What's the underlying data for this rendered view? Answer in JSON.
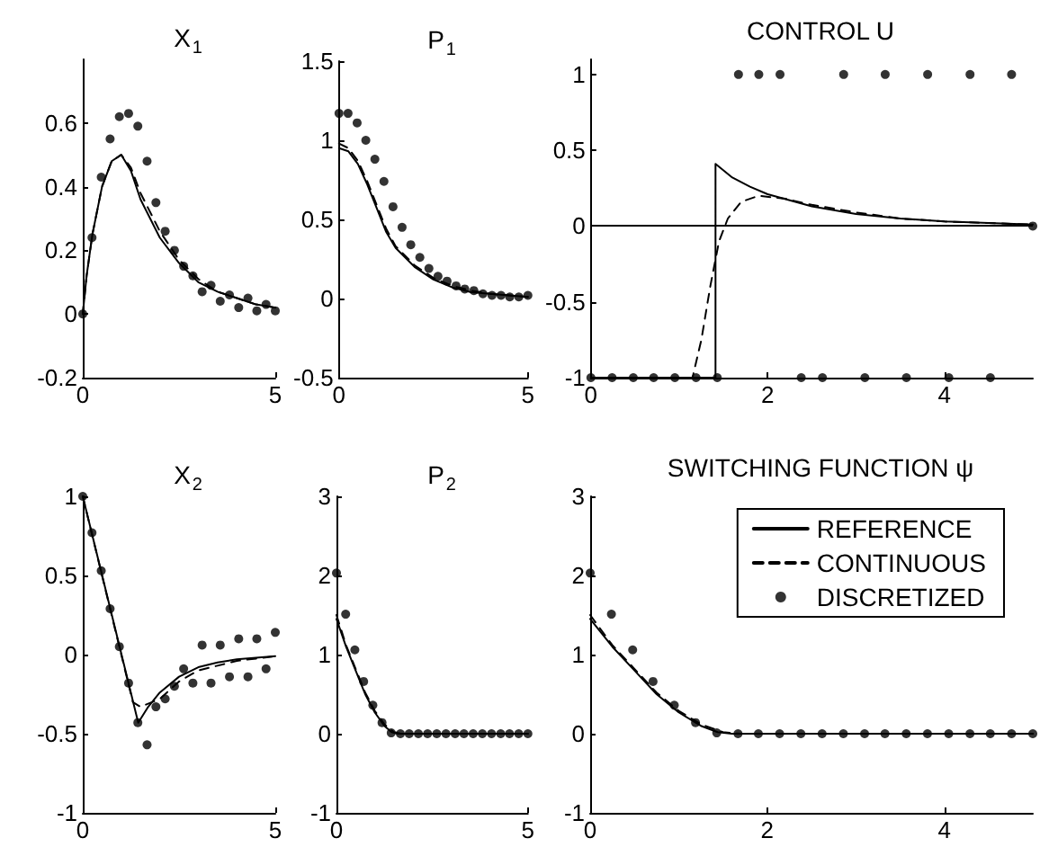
{
  "chart_data": [
    {
      "type": "line",
      "title": "X$_{1}$",
      "xlim": [
        0,
        5
      ],
      "xticks": [
        0,
        5
      ],
      "ylim": [
        -0.2,
        0.8
      ],
      "yticks": [
        -0.2,
        0,
        0.2,
        0.4,
        0.6
      ],
      "series": [
        {
          "type": "line",
          "color": "#000000",
          "line_style": "solid",
          "x": [
            0,
            0.1,
            0.25,
            0.5,
            0.75,
            1.0,
            1.25,
            1.5,
            2,
            2.5,
            3,
            3.5,
            4,
            4.5,
            5
          ],
          "values": [
            0,
            0.12,
            0.25,
            0.4,
            0.48,
            0.5,
            0.45,
            0.36,
            0.24,
            0.16,
            0.1,
            0.07,
            0.05,
            0.03,
            0.02
          ]
        },
        {
          "type": "line",
          "color": "#000000",
          "line_style": "dashed",
          "x": [
            0,
            0.1,
            0.25,
            0.5,
            0.75,
            1.0,
            1.25,
            1.5,
            2,
            2.5,
            3,
            3.5,
            4,
            4.5,
            5
          ],
          "values": [
            0,
            0.12,
            0.25,
            0.4,
            0.48,
            0.5,
            0.46,
            0.38,
            0.26,
            0.17,
            0.11,
            0.07,
            0.05,
            0.03,
            0.02
          ]
        },
        {
          "type": "scatter",
          "color": "#000000",
          "marker": "circle",
          "x": [
            0,
            0.24,
            0.48,
            0.71,
            0.95,
            1.19,
            1.43,
            1.67,
            1.9,
            2.14,
            2.38,
            2.62,
            2.86,
            3.1,
            3.33,
            3.57,
            3.81,
            4.05,
            4.29,
            4.52,
            4.76,
            5
          ],
          "values": [
            0,
            0.24,
            0.43,
            0.55,
            0.62,
            0.63,
            0.59,
            0.48,
            0.35,
            0.26,
            0.2,
            0.15,
            0.12,
            0.07,
            0.09,
            0.04,
            0.06,
            0.02,
            0.05,
            0.01,
            0.03,
            0.01
          ]
        }
      ]
    },
    {
      "type": "line",
      "title": "P$_{1}$",
      "xlim": [
        0,
        5
      ],
      "xticks": [
        0,
        5
      ],
      "ylim": [
        -0.5,
        1.5
      ],
      "yticks": [
        -0.5,
        0,
        0.5,
        1,
        1.5
      ],
      "series": [
        {
          "type": "line",
          "color": "#000000",
          "line_style": "solid",
          "x": [
            0,
            0.25,
            0.5,
            0.75,
            1,
            1.25,
            1.5,
            2,
            2.5,
            3,
            3.5,
            4,
            4.5,
            5
          ],
          "values": [
            0.95,
            0.93,
            0.85,
            0.72,
            0.57,
            0.42,
            0.32,
            0.2,
            0.12,
            0.07,
            0.04,
            0.03,
            0.02,
            0.01
          ]
        },
        {
          "type": "line",
          "color": "#000000",
          "line_style": "dashed",
          "x": [
            0,
            0.25,
            0.5,
            0.75,
            1,
            1.25,
            1.5,
            2,
            2.5,
            3,
            3.5,
            4,
            4.5,
            5
          ],
          "values": [
            0.98,
            0.95,
            0.87,
            0.74,
            0.59,
            0.44,
            0.33,
            0.21,
            0.13,
            0.08,
            0.05,
            0.03,
            0.02,
            0.01
          ]
        },
        {
          "type": "scatter",
          "color": "#000000",
          "marker": "circle",
          "x": [
            0,
            0.24,
            0.48,
            0.71,
            0.95,
            1.19,
            1.43,
            1.67,
            1.9,
            2.14,
            2.38,
            2.62,
            2.86,
            3.1,
            3.33,
            3.57,
            3.81,
            4.05,
            4.29,
            4.52,
            4.76,
            5
          ],
          "values": [
            1.17,
            1.17,
            1.11,
            1.0,
            0.88,
            0.74,
            0.58,
            0.45,
            0.34,
            0.26,
            0.19,
            0.14,
            0.11,
            0.08,
            0.06,
            0.05,
            0.03,
            0.02,
            0.02,
            0.01,
            0.01,
            0.02
          ]
        }
      ]
    },
    {
      "type": "line",
      "title": "CONTROL U",
      "xlim": [
        0,
        5
      ],
      "xticks": [
        0,
        2,
        4
      ],
      "ylim": [
        -1,
        1.1
      ],
      "yticks": [
        -1,
        -0.5,
        0,
        0.5,
        1
      ],
      "ref_lines": [
        {
          "axis": "y",
          "value": 0
        }
      ],
      "series": [
        {
          "type": "line",
          "color": "#000000",
          "line_style": "solid",
          "x": [
            0,
            1.41,
            1.41,
            1.6,
            1.8,
            2,
            2.5,
            3,
            3.5,
            4,
            4.5,
            5
          ],
          "values": [
            -1,
            -1,
            0.41,
            0.32,
            0.26,
            0.21,
            0.13,
            0.08,
            0.05,
            0.03,
            0.02,
            0.01
          ]
        },
        {
          "type": "line",
          "color": "#000000",
          "line_style": "dashed",
          "x": [
            0,
            1.15,
            1.25,
            1.35,
            1.45,
            1.55,
            1.7,
            1.9,
            2.2,
            2.5,
            3,
            3.5,
            4,
            4.5,
            5
          ],
          "values": [
            -1,
            -1,
            -0.75,
            -0.4,
            -0.1,
            0.05,
            0.16,
            0.2,
            0.18,
            0.14,
            0.09,
            0.05,
            0.03,
            0.02,
            0.01
          ]
        },
        {
          "type": "scatter",
          "color": "#000000",
          "marker": "circle",
          "x": [
            0,
            0.24,
            0.48,
            0.71,
            0.95,
            1.19,
            1.43,
            1.67,
            1.9,
            2.14,
            2.38,
            2.62,
            2.86,
            3.1,
            3.33,
            3.57,
            3.81,
            4.05,
            4.29,
            4.52,
            4.76,
            5
          ],
          "values": [
            -1,
            -1,
            -1,
            -1,
            -1,
            -1,
            -1,
            1,
            1,
            1,
            -1,
            -1,
            1,
            -1,
            1,
            -1,
            1,
            -1,
            1,
            -1,
            1,
            0
          ]
        }
      ]
    },
    {
      "type": "line",
      "title": "X$_{2}$",
      "xlim": [
        0,
        5
      ],
      "xticks": [
        0,
        5
      ],
      "ylim": [
        -1,
        1
      ],
      "yticks": [
        -1,
        -0.5,
        0,
        0.5,
        1
      ],
      "series": [
        {
          "type": "line",
          "color": "#000000",
          "line_style": "solid",
          "x": [
            0,
            1.44,
            1.7,
            2,
            2.5,
            3,
            3.5,
            4,
            4.5,
            5
          ],
          "values": [
            1,
            -0.43,
            -0.33,
            -0.24,
            -0.14,
            -0.08,
            -0.05,
            -0.03,
            -0.02,
            -0.01
          ]
        },
        {
          "type": "line",
          "color": "#000000",
          "line_style": "dashed",
          "x": [
            0,
            1.3,
            1.5,
            2,
            2.5,
            3,
            4,
            5
          ],
          "values": [
            1,
            -0.3,
            -0.33,
            -0.28,
            -0.17,
            -0.1,
            -0.04,
            -0.01
          ]
        },
        {
          "type": "scatter",
          "color": "#000000",
          "marker": "circle",
          "x": [
            0,
            0.24,
            0.48,
            0.71,
            0.95,
            1.19,
            1.43,
            1.67,
            1.9,
            2.14,
            2.38,
            2.62,
            2.86,
            3.1,
            3.33,
            3.57,
            3.81,
            4.05,
            4.29,
            4.52,
            4.76,
            5
          ],
          "values": [
            1,
            0.77,
            0.53,
            0.29,
            0.05,
            -0.18,
            -0.43,
            -0.57,
            -0.33,
            -0.28,
            -0.2,
            -0.09,
            -0.18,
            0.06,
            -0.18,
            0.06,
            -0.14,
            0.1,
            -0.14,
            0.1,
            -0.09,
            0.14
          ]
        }
      ]
    },
    {
      "type": "line",
      "title": "P$_{2}$",
      "xlim": [
        0,
        5
      ],
      "xticks": [
        0,
        5
      ],
      "ylim": [
        -1,
        3
      ],
      "yticks": [
        -1,
        0,
        1,
        2,
        3
      ],
      "series": [
        {
          "type": "line",
          "color": "#000000",
          "line_style": "solid",
          "x": [
            0,
            0.25,
            0.5,
            0.75,
            1,
            1.25,
            1.44,
            1.6,
            5
          ],
          "values": [
            1.45,
            1.1,
            0.8,
            0.5,
            0.27,
            0.1,
            0.02,
            0,
            0
          ]
        },
        {
          "type": "line",
          "color": "#000000",
          "line_style": "dashed",
          "x": [
            0,
            0.25,
            0.5,
            0.75,
            1,
            1.25,
            1.5,
            1.7,
            5
          ],
          "values": [
            1.5,
            1.12,
            0.82,
            0.52,
            0.29,
            0.12,
            0.02,
            0,
            0
          ]
        },
        {
          "type": "scatter",
          "color": "#000000",
          "marker": "circle",
          "x": [
            0,
            0.24,
            0.48,
            0.71,
            0.95,
            1.19,
            1.43,
            1.67,
            1.9,
            2.14,
            2.38,
            2.62,
            2.86,
            3.1,
            3.33,
            3.57,
            3.81,
            4.05,
            4.29,
            4.52,
            4.76,
            5
          ],
          "values": [
            2.03,
            1.51,
            1.06,
            0.66,
            0.36,
            0.14,
            0.01,
            0,
            0,
            0,
            0,
            0,
            0,
            0,
            0,
            0,
            0,
            0,
            0,
            0,
            0,
            0
          ]
        }
      ]
    },
    {
      "type": "line",
      "title": "SWITCHING FUNCTION ψ",
      "xlim": [
        0,
        5
      ],
      "xticks": [
        0,
        2,
        4
      ],
      "ylim": [
        -1,
        3
      ],
      "yticks": [
        -1,
        0,
        1,
        2,
        3
      ],
      "legend": "top right",
      "series": [
        {
          "type": "line",
          "name": "REFERENCE",
          "color": "#000000",
          "line_style": "solid",
          "x": [
            0,
            0.25,
            0.5,
            0.75,
            1,
            1.25,
            1.44,
            1.6,
            5
          ],
          "values": [
            1.45,
            1.1,
            0.8,
            0.5,
            0.27,
            0.1,
            0.02,
            0,
            0
          ]
        },
        {
          "type": "line",
          "name": "CONTINUOUS",
          "color": "#000000",
          "line_style": "dashed",
          "x": [
            0,
            0.25,
            0.5,
            0.75,
            1,
            1.25,
            1.5,
            1.7,
            5
          ],
          "values": [
            1.5,
            1.12,
            0.82,
            0.52,
            0.29,
            0.12,
            0.02,
            0,
            0
          ]
        },
        {
          "type": "scatter",
          "name": "DISCRETIZED",
          "color": "#000000",
          "marker": "circle",
          "x": [
            0,
            0.24,
            0.48,
            0.71,
            0.95,
            1.19,
            1.43,
            1.67,
            1.9,
            2.14,
            2.38,
            2.62,
            2.86,
            3.1,
            3.33,
            3.57,
            3.81,
            4.05,
            4.29,
            4.52,
            4.76,
            5
          ],
          "values": [
            2.03,
            1.51,
            1.06,
            0.66,
            0.36,
            0.14,
            0.01,
            0,
            0,
            0,
            0,
            0,
            0,
            0,
            0,
            0,
            0,
            0,
            0,
            0,
            0,
            0
          ]
        }
      ]
    }
  ]
}
